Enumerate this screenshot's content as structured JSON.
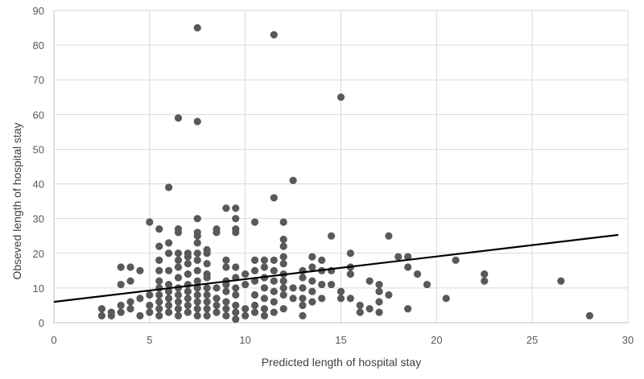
{
  "chart_data": {
    "type": "scatter",
    "title": "",
    "xlabel": "Predicted length of hospital stay",
    "ylabel": "Obseved length of hospital stay",
    "xlim": [
      0,
      30
    ],
    "ylim": [
      0,
      90
    ],
    "xticks": [
      0,
      5,
      10,
      15,
      20,
      25,
      30
    ],
    "yticks": [
      0,
      10,
      20,
      30,
      40,
      50,
      60,
      70,
      80,
      90
    ],
    "grid": true,
    "legend": "none",
    "marker_color": "#595959",
    "series": [
      {
        "points": [
          [
            2.5,
            2
          ],
          [
            2.5,
            4
          ],
          [
            3,
            2
          ],
          [
            3,
            3
          ],
          [
            3.5,
            3
          ],
          [
            3.5,
            5
          ],
          [
            3.5,
            11
          ],
          [
            3.5,
            16
          ],
          [
            4,
            4
          ],
          [
            4,
            6
          ],
          [
            4,
            12
          ],
          [
            4,
            16
          ],
          [
            4.5,
            2
          ],
          [
            4.5,
            7
          ],
          [
            4.5,
            15
          ],
          [
            5,
            3
          ],
          [
            5,
            5
          ],
          [
            5,
            8
          ],
          [
            5,
            29
          ],
          [
            5.5,
            2
          ],
          [
            5.5,
            4
          ],
          [
            5.5,
            6
          ],
          [
            5.5,
            8
          ],
          [
            5.5,
            10
          ],
          [
            5.5,
            12
          ],
          [
            5.5,
            15
          ],
          [
            5.5,
            18
          ],
          [
            5.5,
            22
          ],
          [
            5.5,
            27
          ],
          [
            6,
            3
          ],
          [
            6,
            5
          ],
          [
            6,
            7
          ],
          [
            6,
            9
          ],
          [
            6,
            11
          ],
          [
            6,
            15
          ],
          [
            6,
            20
          ],
          [
            6,
            23
          ],
          [
            6,
            39
          ],
          [
            6.5,
            2
          ],
          [
            6.5,
            4
          ],
          [
            6.5,
            6
          ],
          [
            6.5,
            8
          ],
          [
            6.5,
            10
          ],
          [
            6.5,
            13
          ],
          [
            6.5,
            16
          ],
          [
            6.5,
            18
          ],
          [
            6.5,
            20
          ],
          [
            6.5,
            26
          ],
          [
            6.5,
            27
          ],
          [
            6.5,
            59
          ],
          [
            7,
            3
          ],
          [
            7,
            5
          ],
          [
            7,
            7
          ],
          [
            7,
            9
          ],
          [
            7,
            11
          ],
          [
            7,
            14
          ],
          [
            7,
            17
          ],
          [
            7,
            19
          ],
          [
            7,
            20
          ],
          [
            7.5,
            2
          ],
          [
            7.5,
            4
          ],
          [
            7.5,
            6
          ],
          [
            7.5,
            8
          ],
          [
            7.5,
            10
          ],
          [
            7.5,
            12
          ],
          [
            7.5,
            15
          ],
          [
            7.5,
            18
          ],
          [
            7.5,
            20
          ],
          [
            7.5,
            23
          ],
          [
            7.5,
            25
          ],
          [
            7.5,
            26
          ],
          [
            7.5,
            30
          ],
          [
            7.5,
            58
          ],
          [
            7.5,
            85
          ],
          [
            8,
            2
          ],
          [
            8,
            4
          ],
          [
            8,
            6
          ],
          [
            8,
            8
          ],
          [
            8,
            10
          ],
          [
            8,
            13
          ],
          [
            8,
            14
          ],
          [
            8,
            17
          ],
          [
            8,
            20
          ],
          [
            8,
            21
          ],
          [
            8.5,
            3
          ],
          [
            8.5,
            5
          ],
          [
            8.5,
            7
          ],
          [
            8.5,
            10
          ],
          [
            8.5,
            26
          ],
          [
            8.5,
            27
          ],
          [
            9,
            2
          ],
          [
            9,
            4
          ],
          [
            9,
            6
          ],
          [
            9,
            9
          ],
          [
            9,
            11
          ],
          [
            9,
            12
          ],
          [
            9,
            16
          ],
          [
            9,
            18
          ],
          [
            9,
            33
          ],
          [
            9.5,
            1
          ],
          [
            9.5,
            3
          ],
          [
            9.5,
            5
          ],
          [
            9.5,
            8
          ],
          [
            9.5,
            10
          ],
          [
            9.5,
            13
          ],
          [
            9.5,
            16
          ],
          [
            9.5,
            26
          ],
          [
            9.5,
            27
          ],
          [
            9.5,
            30
          ],
          [
            9.5,
            33
          ],
          [
            10,
            2
          ],
          [
            10,
            4
          ],
          [
            10,
            11
          ],
          [
            10,
            14
          ],
          [
            10.5,
            3
          ],
          [
            10.5,
            5
          ],
          [
            10.5,
            8
          ],
          [
            10.5,
            12
          ],
          [
            10.5,
            15
          ],
          [
            10.5,
            18
          ],
          [
            10.5,
            29
          ],
          [
            11,
            2
          ],
          [
            11,
            4
          ],
          [
            11,
            7
          ],
          [
            11,
            10
          ],
          [
            11,
            13
          ],
          [
            11,
            16
          ],
          [
            11,
            18
          ],
          [
            11.5,
            3
          ],
          [
            11.5,
            6
          ],
          [
            11.5,
            9
          ],
          [
            11.5,
            12
          ],
          [
            11.5,
            15
          ],
          [
            11.5,
            18
          ],
          [
            11.5,
            36
          ],
          [
            11.5,
            83
          ],
          [
            12,
            4
          ],
          [
            12,
            8
          ],
          [
            12,
            10
          ],
          [
            12,
            12
          ],
          [
            12,
            14
          ],
          [
            12,
            17
          ],
          [
            12,
            19
          ],
          [
            12,
            22
          ],
          [
            12,
            24
          ],
          [
            12,
            29
          ],
          [
            12.5,
            7
          ],
          [
            12.5,
            10
          ],
          [
            12.5,
            41
          ],
          [
            13,
            2
          ],
          [
            13,
            5
          ],
          [
            13,
            7
          ],
          [
            13,
            10
          ],
          [
            13,
            13
          ],
          [
            13,
            15
          ],
          [
            13.5,
            6
          ],
          [
            13.5,
            9
          ],
          [
            13.5,
            12
          ],
          [
            13.5,
            16
          ],
          [
            13.5,
            19
          ],
          [
            14,
            7
          ],
          [
            14,
            11
          ],
          [
            14,
            15
          ],
          [
            14,
            18
          ],
          [
            14.5,
            11
          ],
          [
            14.5,
            15
          ],
          [
            14.5,
            25
          ],
          [
            15,
            7
          ],
          [
            15,
            9
          ],
          [
            15,
            65
          ],
          [
            15.5,
            7
          ],
          [
            15.5,
            14
          ],
          [
            15.5,
            16
          ],
          [
            15.5,
            20
          ],
          [
            16,
            3
          ],
          [
            16,
            5
          ],
          [
            16.5,
            4
          ],
          [
            16.5,
            12
          ],
          [
            17,
            3
          ],
          [
            17,
            6
          ],
          [
            17,
            9
          ],
          [
            17,
            11
          ],
          [
            17.5,
            8
          ],
          [
            17.5,
            25
          ],
          [
            18,
            19
          ],
          [
            18.5,
            4
          ],
          [
            18.5,
            16
          ],
          [
            18.5,
            19
          ],
          [
            19,
            14
          ],
          [
            19.5,
            11
          ],
          [
            20.5,
            7
          ],
          [
            21,
            18
          ],
          [
            22.5,
            12
          ],
          [
            22.5,
            14
          ],
          [
            26.5,
            12
          ],
          [
            28,
            2
          ]
        ]
      }
    ],
    "trendline": {
      "x": [
        0,
        29.5
      ],
      "y": [
        6,
        25.3
      ],
      "color": "#000000"
    }
  }
}
